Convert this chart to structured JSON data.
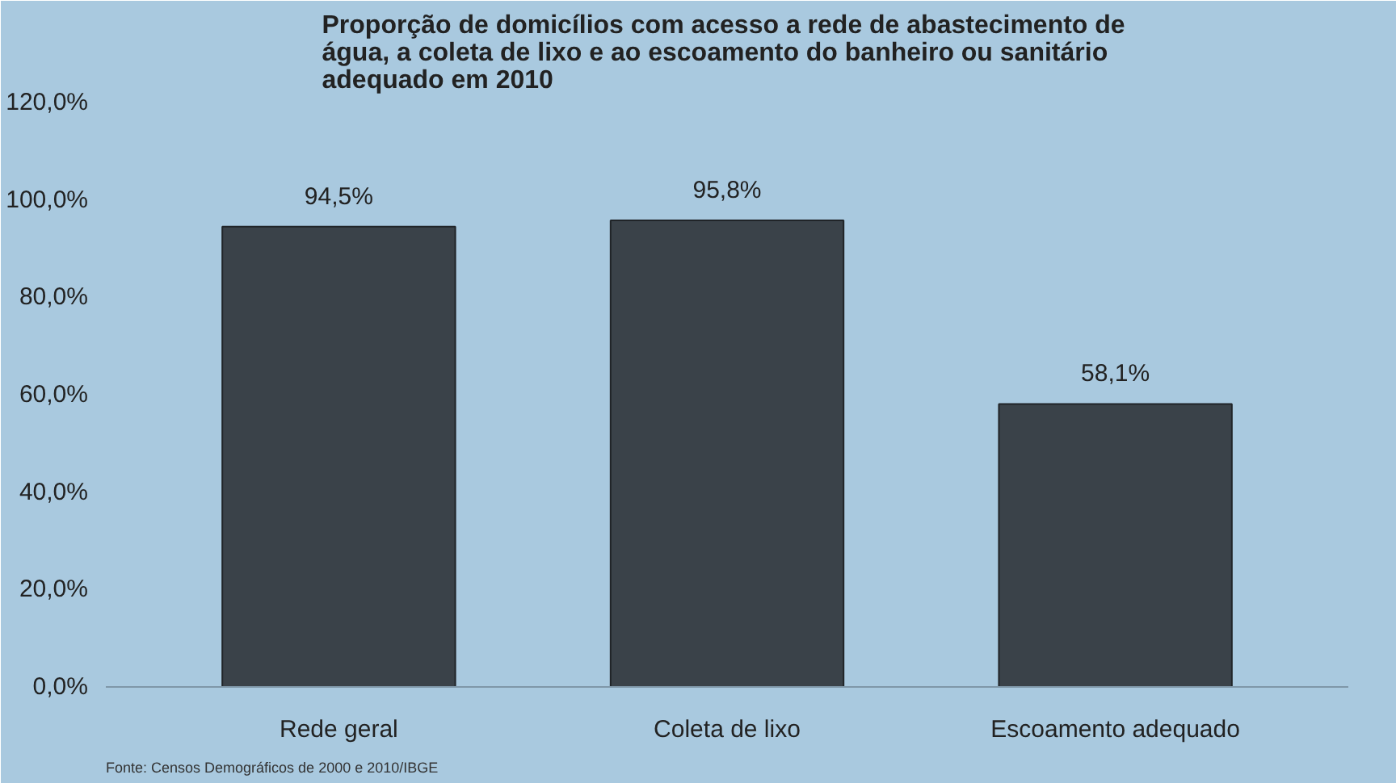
{
  "chart_data": {
    "type": "bar",
    "title": "Proporção de domicílios com acesso  a rede de abastecimento de\nágua, a coleta de lixo e ao escoamento do banheiro ou sanitário\nadequado em 2010",
    "categories": [
      "Rede geral",
      "Coleta de lixo",
      "Escoamento adequado"
    ],
    "values": [
      94.5,
      95.8,
      58.1
    ],
    "value_labels": [
      "94,5%",
      "95,8%",
      "58,1%"
    ],
    "color": "#3a4249",
    "ylim": [
      0,
      120
    ],
    "yticks": [
      {
        "value": 0,
        "label": "0,0%"
      },
      {
        "value": 20,
        "label": "20,0%"
      },
      {
        "value": 40,
        "label": "40,0%"
      },
      {
        "value": 60,
        "label": "60,0%"
      },
      {
        "value": 80,
        "label": "80,0%"
      },
      {
        "value": 100,
        "label": "100,0%"
      },
      {
        "value": 120,
        "label": "120,0%"
      }
    ],
    "grid": false,
    "annotations": [
      "Fonte: Censos Demográficos de 2000 e 2010/IBGE"
    ]
  }
}
